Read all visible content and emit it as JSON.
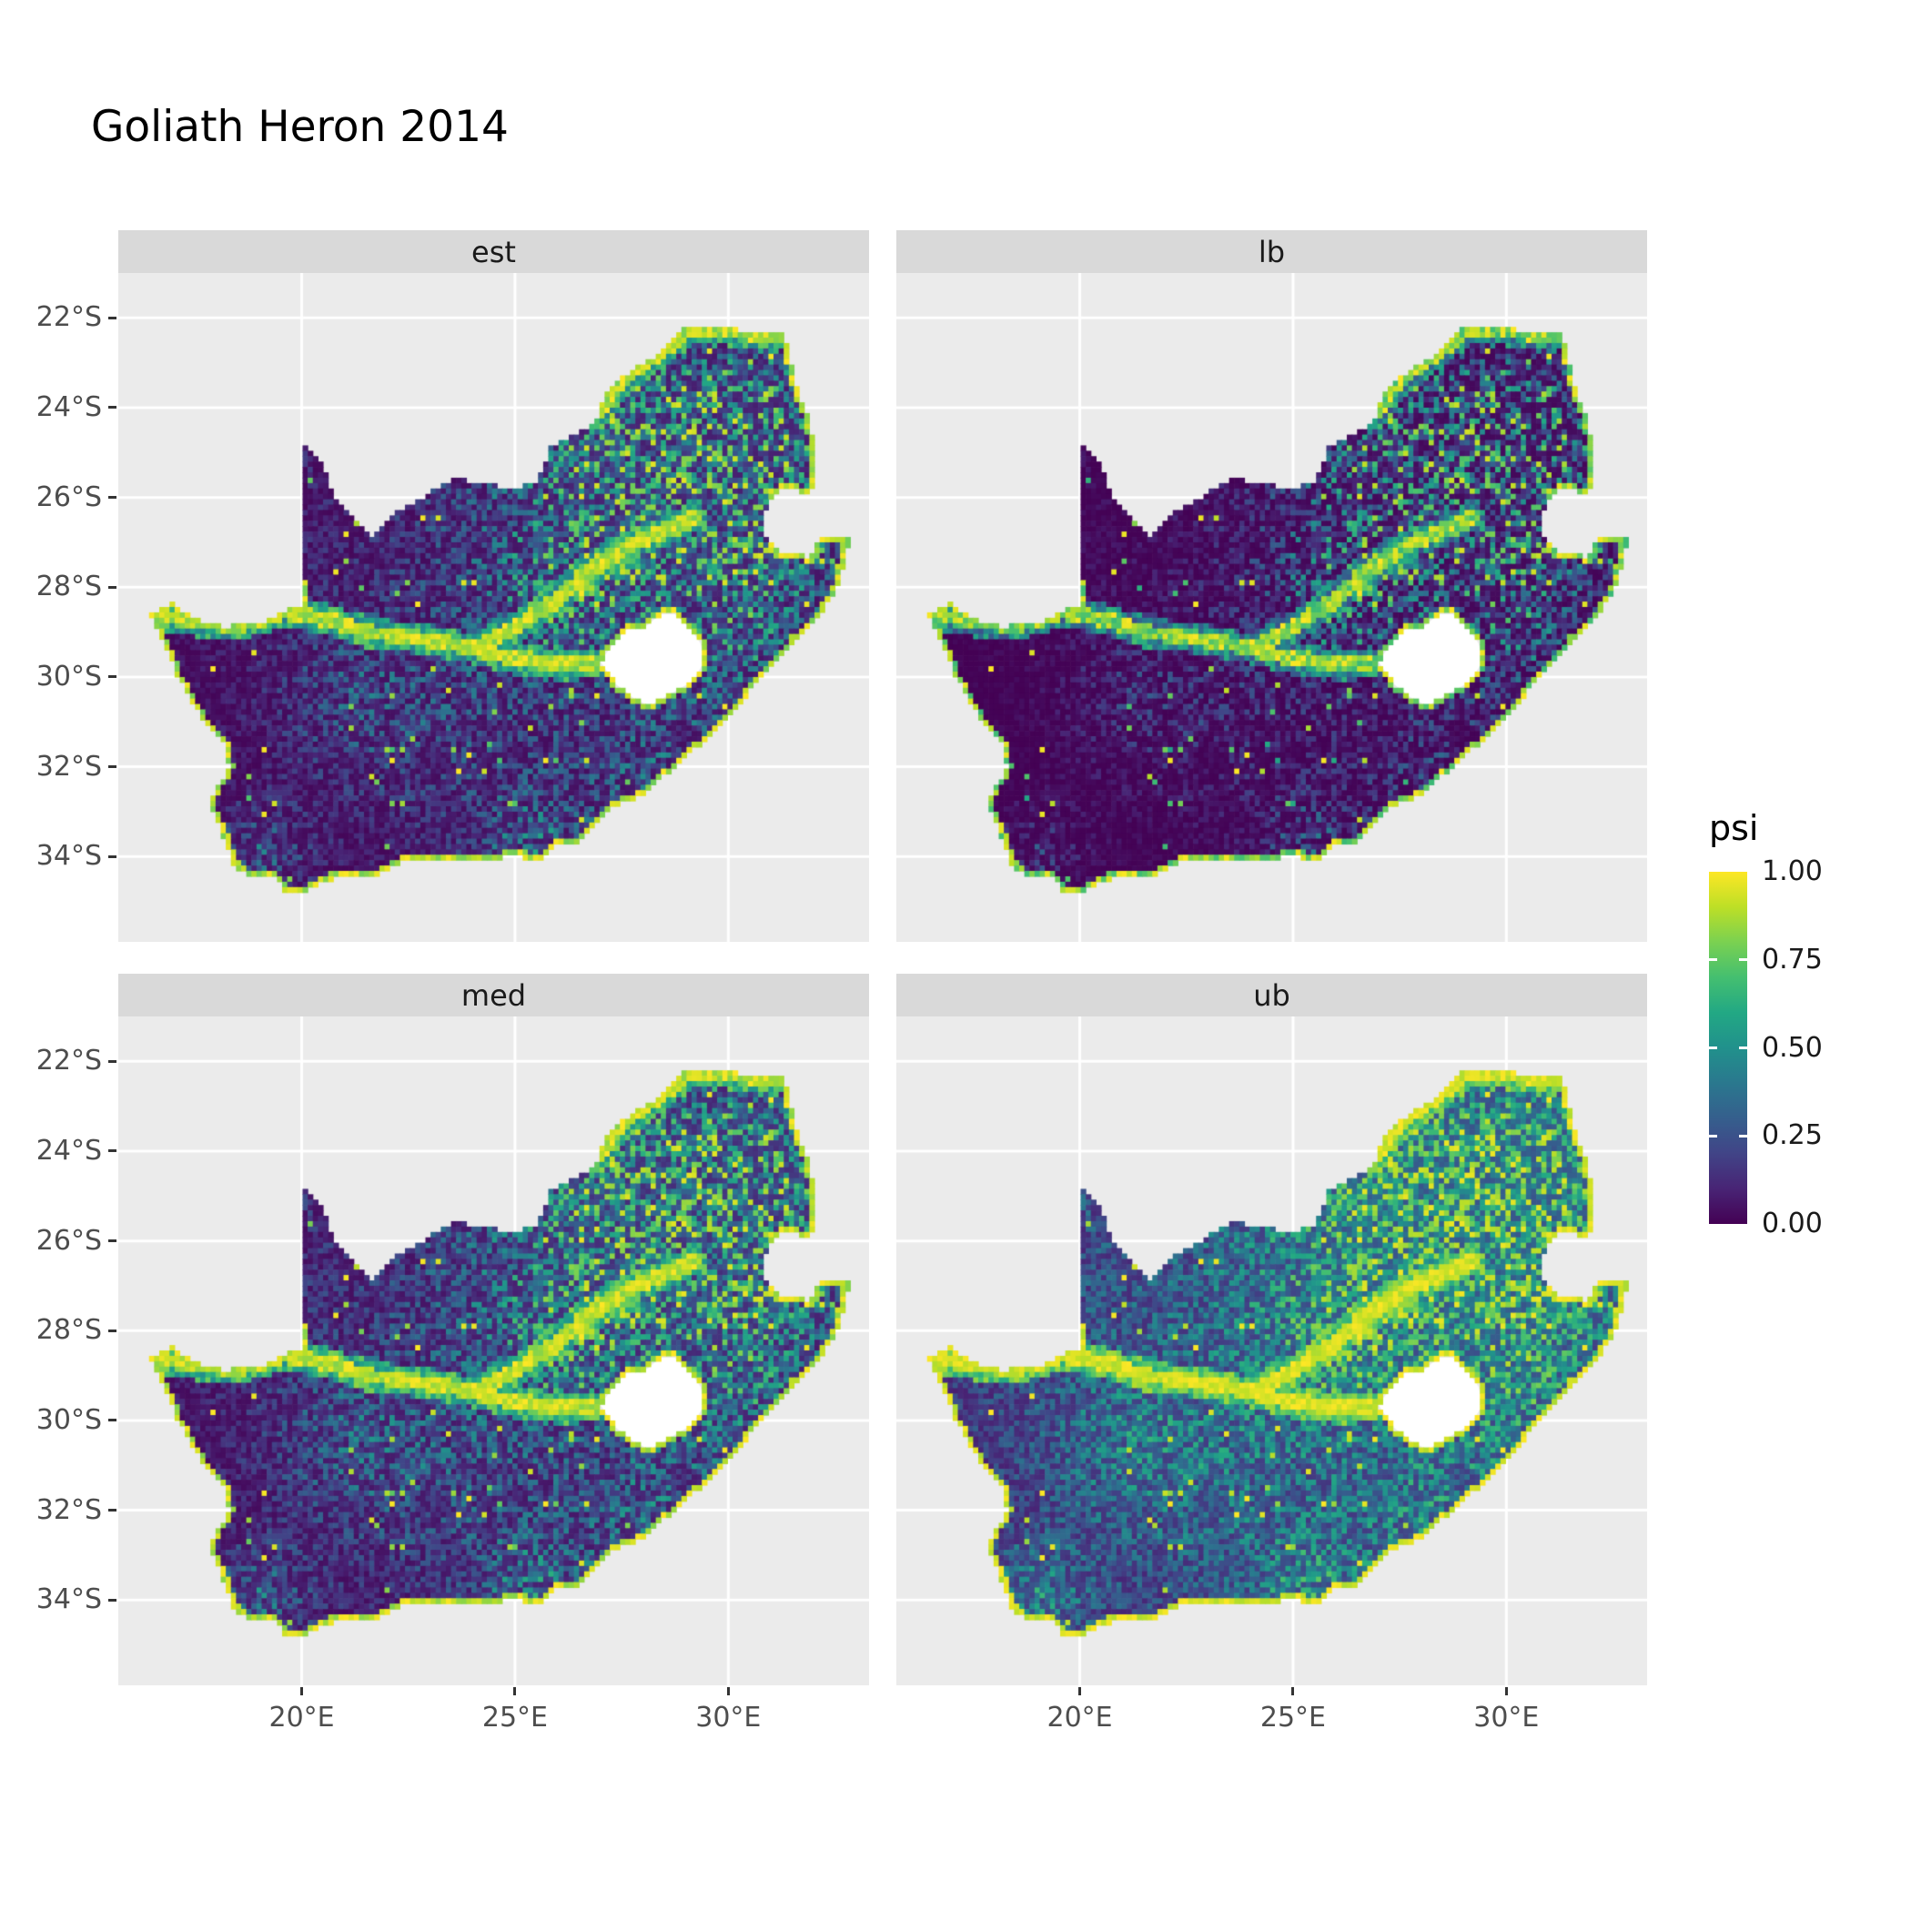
{
  "title": "Goliath Heron 2014",
  "facets": [
    {
      "label": "est",
      "gamma": 1.15
    },
    {
      "label": "lb",
      "gamma": 1.8
    },
    {
      "label": "med",
      "gamma": 0.95
    },
    {
      "label": "ub",
      "gamma": 0.62
    }
  ],
  "axes": {
    "x": {
      "ticks": [
        {
          "label": "20°E",
          "lon": 20
        },
        {
          "label": "25°E",
          "lon": 25
        },
        {
          "label": "30°E",
          "lon": 30
        }
      ]
    },
    "y": {
      "ticks": [
        {
          "label": "22°S",
          "lat": -22
        },
        {
          "label": "24°S",
          "lat": -24
        },
        {
          "label": "26°S",
          "lat": -26
        },
        {
          "label": "28°S",
          "lat": -28
        },
        {
          "label": "30°S",
          "lat": -30
        },
        {
          "label": "32°S",
          "lat": -32
        },
        {
          "label": "34°S",
          "lat": -34
        }
      ]
    }
  },
  "legend": {
    "title": "psi",
    "ticks": [
      {
        "label": "1.00",
        "value": 1.0
      },
      {
        "label": "0.75",
        "value": 0.75
      },
      {
        "label": "0.50",
        "value": 0.5
      },
      {
        "label": "0.25",
        "value": 0.25
      },
      {
        "label": "0.00",
        "value": 0.0
      }
    ]
  },
  "colors": {
    "panel_bg": "#EBEBEB",
    "strip_bg": "#D9D9D9",
    "grid": "#FFFFFF",
    "axis_text": "#4D4D4D",
    "tick_mark": "#333333",
    "na_fill": "#FFFFFF",
    "viridis": [
      [
        0.0,
        "#440154"
      ],
      [
        0.1,
        "#482475"
      ],
      [
        0.2,
        "#414487"
      ],
      [
        0.3,
        "#355F8D"
      ],
      [
        0.4,
        "#2A788E"
      ],
      [
        0.5,
        "#21918C"
      ],
      [
        0.6,
        "#22A884"
      ],
      [
        0.7,
        "#44BF70"
      ],
      [
        0.8,
        "#7AD151"
      ],
      [
        0.9,
        "#BDDF26"
      ],
      [
        1.0,
        "#FDE725"
      ]
    ]
  },
  "map": {
    "lon_range": [
      15.7,
      33.3
    ],
    "lat_range": [
      -35.9,
      -21.0
    ],
    "cell_deg": 0.12,
    "outline": [
      [
        16.45,
        -28.58
      ],
      [
        17.0,
        -28.32
      ],
      [
        17.4,
        -28.68
      ],
      [
        18.2,
        -28.87
      ],
      [
        19.0,
        -28.82
      ],
      [
        19.6,
        -28.52
      ],
      [
        19.99,
        -28.4
      ],
      [
        19.99,
        -24.77
      ],
      [
        20.45,
        -25.15
      ],
      [
        20.65,
        -25.7
      ],
      [
        20.75,
        -26.05
      ],
      [
        21.1,
        -26.35
      ],
      [
        21.65,
        -26.85
      ],
      [
        22.2,
        -26.35
      ],
      [
        22.9,
        -25.95
      ],
      [
        23.65,
        -25.57
      ],
      [
        24.4,
        -25.73
      ],
      [
        25.1,
        -25.78
      ],
      [
        25.55,
        -25.6
      ],
      [
        25.85,
        -24.85
      ],
      [
        26.45,
        -24.6
      ],
      [
        26.9,
        -24.25
      ],
      [
        27.15,
        -23.6
      ],
      [
        27.75,
        -23.15
      ],
      [
        28.35,
        -22.8
      ],
      [
        29.05,
        -22.15
      ],
      [
        29.7,
        -22.15
      ],
      [
        30.4,
        -22.3
      ],
      [
        31.3,
        -22.35
      ],
      [
        31.6,
        -23.55
      ],
      [
        31.95,
        -24.4
      ],
      [
        32.0,
        -25.15
      ],
      [
        32.05,
        -25.65
      ],
      [
        31.9,
        -25.95
      ],
      [
        31.3,
        -25.75
      ],
      [
        30.9,
        -26.1
      ],
      [
        30.8,
        -26.8
      ],
      [
        31.15,
        -27.2
      ],
      [
        31.95,
        -27.32
      ],
      [
        32.15,
        -26.85
      ],
      [
        32.85,
        -26.85
      ],
      [
        32.6,
        -27.9
      ],
      [
        32.25,
        -28.5
      ],
      [
        31.7,
        -29.1
      ],
      [
        31.05,
        -29.65
      ],
      [
        30.6,
        -30.2
      ],
      [
        30.1,
        -30.8
      ],
      [
        29.45,
        -31.4
      ],
      [
        28.75,
        -32.0
      ],
      [
        28.0,
        -32.6
      ],
      [
        27.1,
        -33.0
      ],
      [
        26.45,
        -33.75
      ],
      [
        25.95,
        -33.75
      ],
      [
        25.65,
        -34.05
      ],
      [
        24.9,
        -34.0
      ],
      [
        24.1,
        -34.1
      ],
      [
        23.35,
        -34.1
      ],
      [
        22.55,
        -34.05
      ],
      [
        21.75,
        -34.4
      ],
      [
        20.9,
        -34.4
      ],
      [
        20.0,
        -34.82
      ],
      [
        19.6,
        -34.75
      ],
      [
        19.35,
        -34.45
      ],
      [
        18.8,
        -34.4
      ],
      [
        18.45,
        -34.3
      ],
      [
        18.3,
        -33.85
      ],
      [
        18.0,
        -33.2
      ],
      [
        17.85,
        -32.75
      ],
      [
        18.3,
        -32.0
      ],
      [
        18.2,
        -31.5
      ],
      [
        17.7,
        -31.0
      ],
      [
        17.1,
        -30.0
      ],
      [
        16.8,
        -29.35
      ],
      [
        16.45,
        -28.58
      ]
    ],
    "lesotho": [
      [
        27.0,
        -29.65
      ],
      [
        27.35,
        -29.2
      ],
      [
        27.6,
        -28.95
      ],
      [
        28.1,
        -28.85
      ],
      [
        28.4,
        -28.6
      ],
      [
        28.75,
        -28.6
      ],
      [
        29.1,
        -28.9
      ],
      [
        29.35,
        -29.25
      ],
      [
        29.45,
        -29.65
      ],
      [
        29.15,
        -30.1
      ],
      [
        28.6,
        -30.4
      ],
      [
        28.15,
        -30.65
      ],
      [
        27.75,
        -30.45
      ],
      [
        27.35,
        -30.15
      ],
      [
        27.0,
        -29.65
      ]
    ],
    "rivers": [
      [
        [
          16.55,
          -28.62
        ],
        [
          17.6,
          -28.78
        ],
        [
          18.6,
          -28.82
        ],
        [
          19.55,
          -28.55
        ],
        [
          20.6,
          -28.72
        ],
        [
          21.6,
          -29.02
        ],
        [
          22.6,
          -29.12
        ],
        [
          23.7,
          -29.3
        ],
        [
          24.5,
          -29.5
        ],
        [
          25.3,
          -29.62
        ]
      ],
      [
        [
          24.3,
          -29.25
        ],
        [
          25.1,
          -28.85
        ],
        [
          26.0,
          -28.25
        ],
        [
          26.9,
          -27.55
        ],
        [
          27.8,
          -27.0
        ],
        [
          28.6,
          -26.75
        ],
        [
          29.2,
          -26.45
        ]
      ],
      [
        [
          26.95,
          -24.1
        ],
        [
          27.6,
          -23.3
        ],
        [
          28.3,
          -22.85
        ],
        [
          29.1,
          -22.25
        ],
        [
          30.2,
          -22.3
        ],
        [
          31.25,
          -22.4
        ]
      ],
      [
        [
          25.3,
          -29.62
        ],
        [
          26.2,
          -29.75
        ],
        [
          27.0,
          -29.7
        ]
      ]
    ],
    "hotspots": [
      [
        27.95,
        -26.15,
        1.25,
        0.62
      ],
      [
        26.35,
        -28.55,
        1.05,
        0.55
      ],
      [
        29.6,
        -26.6,
        1.4,
        0.42
      ],
      [
        30.9,
        -23.9,
        1.3,
        0.42
      ],
      [
        27.4,
        -24.5,
        1.3,
        0.36
      ],
      [
        30.2,
        -29.2,
        1.2,
        0.42
      ],
      [
        23.5,
        -30.8,
        2.2,
        0.26
      ],
      [
        20.9,
        -30.4,
        1.4,
        0.2
      ],
      [
        18.9,
        -34.1,
        0.9,
        0.45
      ],
      [
        25.4,
        -33.8,
        0.9,
        0.4
      ],
      [
        28.3,
        -32.3,
        1.3,
        0.32
      ],
      [
        29.0,
        -24.9,
        1.4,
        0.34
      ],
      [
        31.3,
        -26.6,
        1.0,
        0.35
      ],
      [
        25.0,
        -26.5,
        1.5,
        0.22
      ]
    ]
  },
  "chart_data": {
    "type": "heatmap",
    "title": "Goliath Heron 2014",
    "facet_variable_levels": [
      "est",
      "lb",
      "med",
      "ub"
    ],
    "legend": {
      "title": "psi",
      "ticks": [
        0.0,
        0.25,
        0.5,
        0.75,
        1.0
      ],
      "palette": "viridis",
      "range": [
        0,
        1
      ],
      "position": "right"
    },
    "x": {
      "label": "",
      "ticks": [
        "20°E",
        "25°E",
        "30°E"
      ],
      "range_deg": [
        15.7,
        33.3
      ]
    },
    "y": {
      "label": "",
      "ticks": [
        "22°S",
        "24°S",
        "26°S",
        "28°S",
        "30°S",
        "32°S",
        "34°S"
      ],
      "range_deg": [
        -35.9,
        -21.0
      ]
    },
    "geography": "South Africa raster occupancy grid; Lesotho shown blank (NA); grey panel background with white graticule lines",
    "pattern_summary": {
      "est": "mostly low psi (dark purple) with teal/green speckle; high psi (yellow) along Orange/Vaal rivers, coastline, Lesotho rim and Gauteng/NE highveld",
      "lb": "lowest values overall; only rivers, coastline and strongest hotspots remain bright",
      "med": "similar to est, slightly brighter overall",
      "ub": "highest values; widespread teal/green across the north-eastern interior and east coast"
    }
  }
}
